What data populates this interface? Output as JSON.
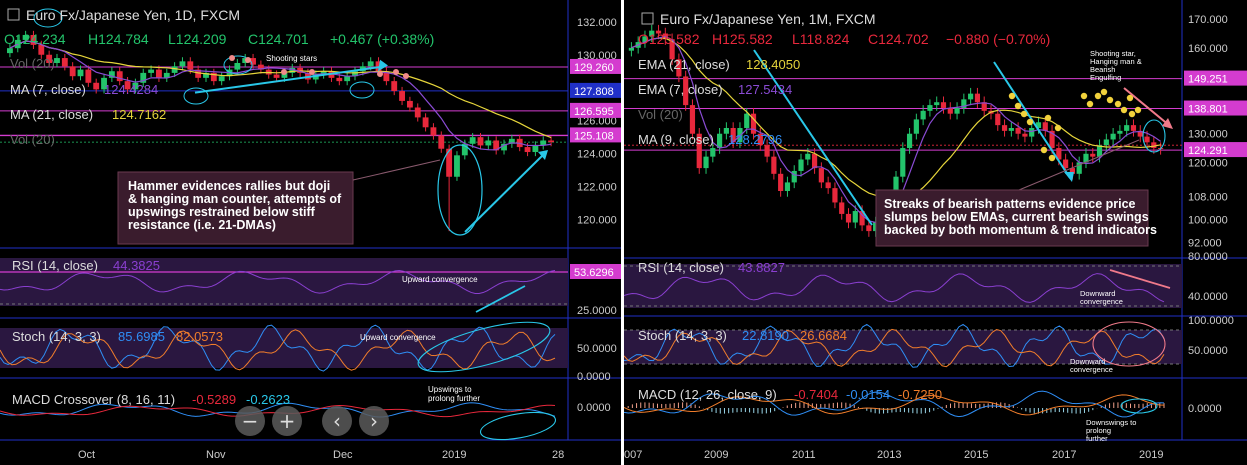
{
  "colors": {
    "bull": "#23c46b",
    "bear": "#e8283c",
    "ma_fast": "#8a4bd4",
    "ma_slow": "#e6d53b",
    "arrow": "#29c7e8",
    "rsi": "#8a3fd0",
    "stoch_k": "#2f8ef5",
    "stoch_d": "#f07d2b",
    "band": "#2a1740",
    "annot_bg": "#3a1c2d",
    "magenta": "#d43ccf",
    "axis_blue": "#2030c8"
  },
  "left": {
    "header": {
      "title": "Euro Fx/Japanese Yen, 1D, FXCM",
      "ohlc_o": "O124.234",
      "ohlc_h": "H124.784",
      "ohlc_l": "L124.209",
      "ohlc_c": "C124.701",
      "change": "+0.467 (+0.38%)"
    },
    "legend": {
      "vol": "Vol (20)",
      "ma7_name": "MA (7, close)",
      "ma7_value": "124.4284",
      "ma21_name": "MA (21, close)",
      "ma21_value": "124.7162",
      "vol2": "Vol (20)"
    },
    "price_tags": {
      "t1": "129.260",
      "t2": "127.808",
      "t3": "126.595",
      "t4": "125.108"
    },
    "annotations": {
      "shooting": "Shooting stars",
      "main": "Hammer evidences rallies but doji & hanging man counter, attempts of upswings restrained below stiff resistance (i.e. 21-DMAs)",
      "rsi_note": "Upward convergence",
      "stoch_note": "Upward convergence",
      "macd_note": "Upswings to prolong further"
    },
    "rsi": {
      "name": "RSI (14, close)",
      "value": "44.3825",
      "tag": "53.6296"
    },
    "stoch": {
      "name": "Stoch (14, 3, 3)",
      "k": "85.6985",
      "d": "82.0573"
    },
    "macd": {
      "name": "MACD Crossover (8, 16, 11)",
      "v1": "-0.5289",
      "v2": "-0.2623"
    },
    "controls": {
      "minus": "−",
      "plus": "+",
      "left": "‹",
      "right": "›"
    },
    "chart_data": {
      "type": "candlestick",
      "title": "Euro Fx/Japanese Yen, 1D, FXCM",
      "y_ticks": [
        "132.000",
        "130.000",
        "128.000",
        "126.000",
        "124.000",
        "122.000",
        "120.000"
      ],
      "rsi_ticks": [
        "25.0000"
      ],
      "stoch_ticks": [
        "50.0000",
        "0.0000"
      ],
      "macd_ticks": [
        "0.0000"
      ],
      "x_ticks": [
        "Oct",
        "Nov",
        "Dec",
        "2019",
        "28"
      ],
      "ylim": [
        118.4,
        133.2
      ],
      "close": [
        130.4,
        130.9,
        131.2,
        130.6,
        130.0,
        129.5,
        129.8,
        129.3,
        128.7,
        129.1,
        128.3,
        127.9,
        128.6,
        129.0,
        128.4,
        127.9,
        128.3,
        128.9,
        129.1,
        128.6,
        128.9,
        129.3,
        129.6,
        129.1,
        128.6,
        128.9,
        128.4,
        128.7,
        129.1,
        129.5,
        129.8,
        129.4,
        129.1,
        128.8,
        128.6,
        128.9,
        129.2,
        128.9,
        128.5,
        128.8,
        129.0,
        128.6,
        128.4,
        128.7,
        129.0,
        129.3,
        129.6,
        129.0,
        128.4,
        127.8,
        127.2,
        126.8,
        126.2,
        125.6,
        125.1,
        124.3,
        122.6,
        123.9,
        124.6,
        125.0,
        124.5,
        124.8,
        124.2,
        124.6,
        124.9,
        124.4,
        124.1,
        124.5,
        124.8,
        124.7
      ]
    }
  },
  "right": {
    "header": {
      "title": "Euro Fx/Japanese Yen, 1M, FXCM",
      "ohlc_o": "O125.582",
      "ohlc_h": "H125.582",
      "ohlc_l": "L118.824",
      "ohlc_c": "C124.702",
      "change": "−0.880 (−0.70%)"
    },
    "legend": {
      "ema21_name": "EMA (21, close)",
      "ema21_value": "128.4050",
      "ema7_name": "EMA (7, close)",
      "ema7_value": "127.5434",
      "vol": "Vol (20)",
      "ma9_name": "MA (9, close)",
      "ma9_value": "128.2796"
    },
    "price_tags": {
      "t1": "149.251",
      "t2": "138.801",
      "t3": "124.291"
    },
    "annotations": {
      "shooting": "Shooting star, Hanging man & Bearish Engulfing",
      "main": "Streaks of bearish patterns evidence price slumps below EMAs, current bearish swings backed by both momentum & trend indicators",
      "rsi_note": "Downward convergence",
      "stoch_note": "Downward convergence",
      "macd_note": "Downswings to prolong further"
    },
    "rsi": {
      "name": "RSI (14, close)",
      "value": "43.8827"
    },
    "stoch": {
      "name": "Stoch (14, 3, 3)",
      "k": "22.8190",
      "d": "26.6684"
    },
    "macd": {
      "name": "MACD (12, 26, close, 9)",
      "v1": "-0.7404",
      "v2": "-0.0154",
      "v3": "-0.7250"
    },
    "chart_data": {
      "type": "candlestick",
      "title": "Euro Fx/Japanese Yen, 1M, FXCM",
      "y_ticks": [
        "170.000",
        "160.000",
        "150.000",
        "140.000",
        "130.000",
        "120.000",
        "108.000",
        "100.000",
        "92.000"
      ],
      "rsi_ticks": [
        "80.0000",
        "40.0000"
      ],
      "stoch_ticks": [
        "100.0000",
        "50.0000"
      ],
      "macd_ticks": [
        "0.0000"
      ],
      "x_ticks": [
        "007",
        "2009",
        "2011",
        "2013",
        "2015",
        "2017",
        "2019"
      ],
      "ylim": [
        88,
        176
      ],
      "close": [
        160,
        162,
        164,
        166,
        165,
        163,
        156,
        150,
        140,
        130,
        118,
        122,
        125,
        130,
        132,
        127,
        132,
        137,
        130,
        126,
        122,
        116,
        110,
        113,
        117,
        121,
        123,
        118,
        113,
        111,
        106,
        102,
        99,
        103,
        98,
        96,
        99,
        103,
        108,
        115,
        125,
        130,
        135,
        138,
        140,
        141,
        139,
        137,
        139,
        142,
        144,
        141,
        138,
        137,
        133,
        131,
        132,
        130,
        129,
        132,
        134,
        131,
        125,
        121,
        118,
        116,
        120,
        123,
        122,
        126,
        128,
        130,
        131,
        133,
        131,
        129,
        127,
        125,
        124.7
      ]
    }
  }
}
